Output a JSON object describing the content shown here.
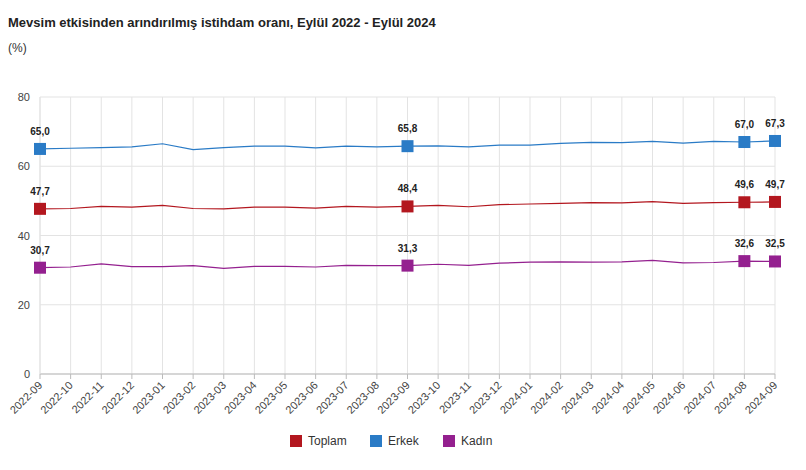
{
  "chart_data": {
    "type": "line",
    "title": "Mevsim etkisinden arındırılmış istihdam oranı, Eylül 2022 - Eylül 2024",
    "subtitle": "(%)",
    "categories": [
      "2022-09",
      "2022-10",
      "2022-11",
      "2022-12",
      "2023-01",
      "2023-02",
      "2023-03",
      "2023-04",
      "2023-05",
      "2023-06",
      "2023-07",
      "2023-08",
      "2023-09",
      "2023-10",
      "2023-11",
      "2023-12",
      "2024-01",
      "2024-02",
      "2024-03",
      "2024-04",
      "2024-05",
      "2024-06",
      "2024-07",
      "2024-08",
      "2024-09"
    ],
    "series": [
      {
        "name": "Toplam",
        "color": "#b3171f",
        "marker": "square",
        "values": [
          47.7,
          47.8,
          48.4,
          48.2,
          48.7,
          47.8,
          47.7,
          48.2,
          48.2,
          47.9,
          48.4,
          48.2,
          48.4,
          48.7,
          48.3,
          48.9,
          49.1,
          49.3,
          49.5,
          49.4,
          49.8,
          49.3,
          49.5,
          49.6,
          49.7
        ],
        "value_labels": [
          "47,7",
          null,
          null,
          null,
          null,
          null,
          null,
          null,
          null,
          null,
          null,
          null,
          "48,4",
          null,
          null,
          null,
          null,
          null,
          null,
          null,
          null,
          null,
          null,
          "49,6",
          "49,7"
        ]
      },
      {
        "name": "Erkek",
        "color": "#2a7bc6",
        "marker": "square",
        "values": [
          65.0,
          65.2,
          65.4,
          65.6,
          66.5,
          64.8,
          65.4,
          65.8,
          65.8,
          65.3,
          65.8,
          65.6,
          65.8,
          65.9,
          65.6,
          66.1,
          66.1,
          66.6,
          66.9,
          66.8,
          67.2,
          66.7,
          67.2,
          67.0,
          67.3
        ],
        "value_labels": [
          "65,0",
          null,
          null,
          null,
          null,
          null,
          null,
          null,
          null,
          null,
          null,
          null,
          "65,8",
          null,
          null,
          null,
          null,
          null,
          null,
          null,
          null,
          null,
          null,
          "67,0",
          "67,3"
        ]
      },
      {
        "name": "Kadın",
        "color": "#94208f",
        "marker": "square",
        "values": [
          30.7,
          30.9,
          31.8,
          31.0,
          31.0,
          31.3,
          30.5,
          31.1,
          31.1,
          30.9,
          31.4,
          31.3,
          31.3,
          31.7,
          31.4,
          32.0,
          32.3,
          32.4,
          32.3,
          32.4,
          32.8,
          32.1,
          32.2,
          32.6,
          32.5
        ],
        "value_labels": [
          "30,7",
          null,
          null,
          null,
          null,
          null,
          null,
          null,
          null,
          null,
          null,
          null,
          "31,3",
          null,
          null,
          null,
          null,
          null,
          null,
          null,
          null,
          null,
          null,
          "32,6",
          "32,5"
        ]
      }
    ],
    "ylim": [
      0,
      80
    ],
    "yticks": [
      0,
      20,
      40,
      60,
      80
    ],
    "grid": true,
    "data_labels": true,
    "legend": "bottom"
  }
}
